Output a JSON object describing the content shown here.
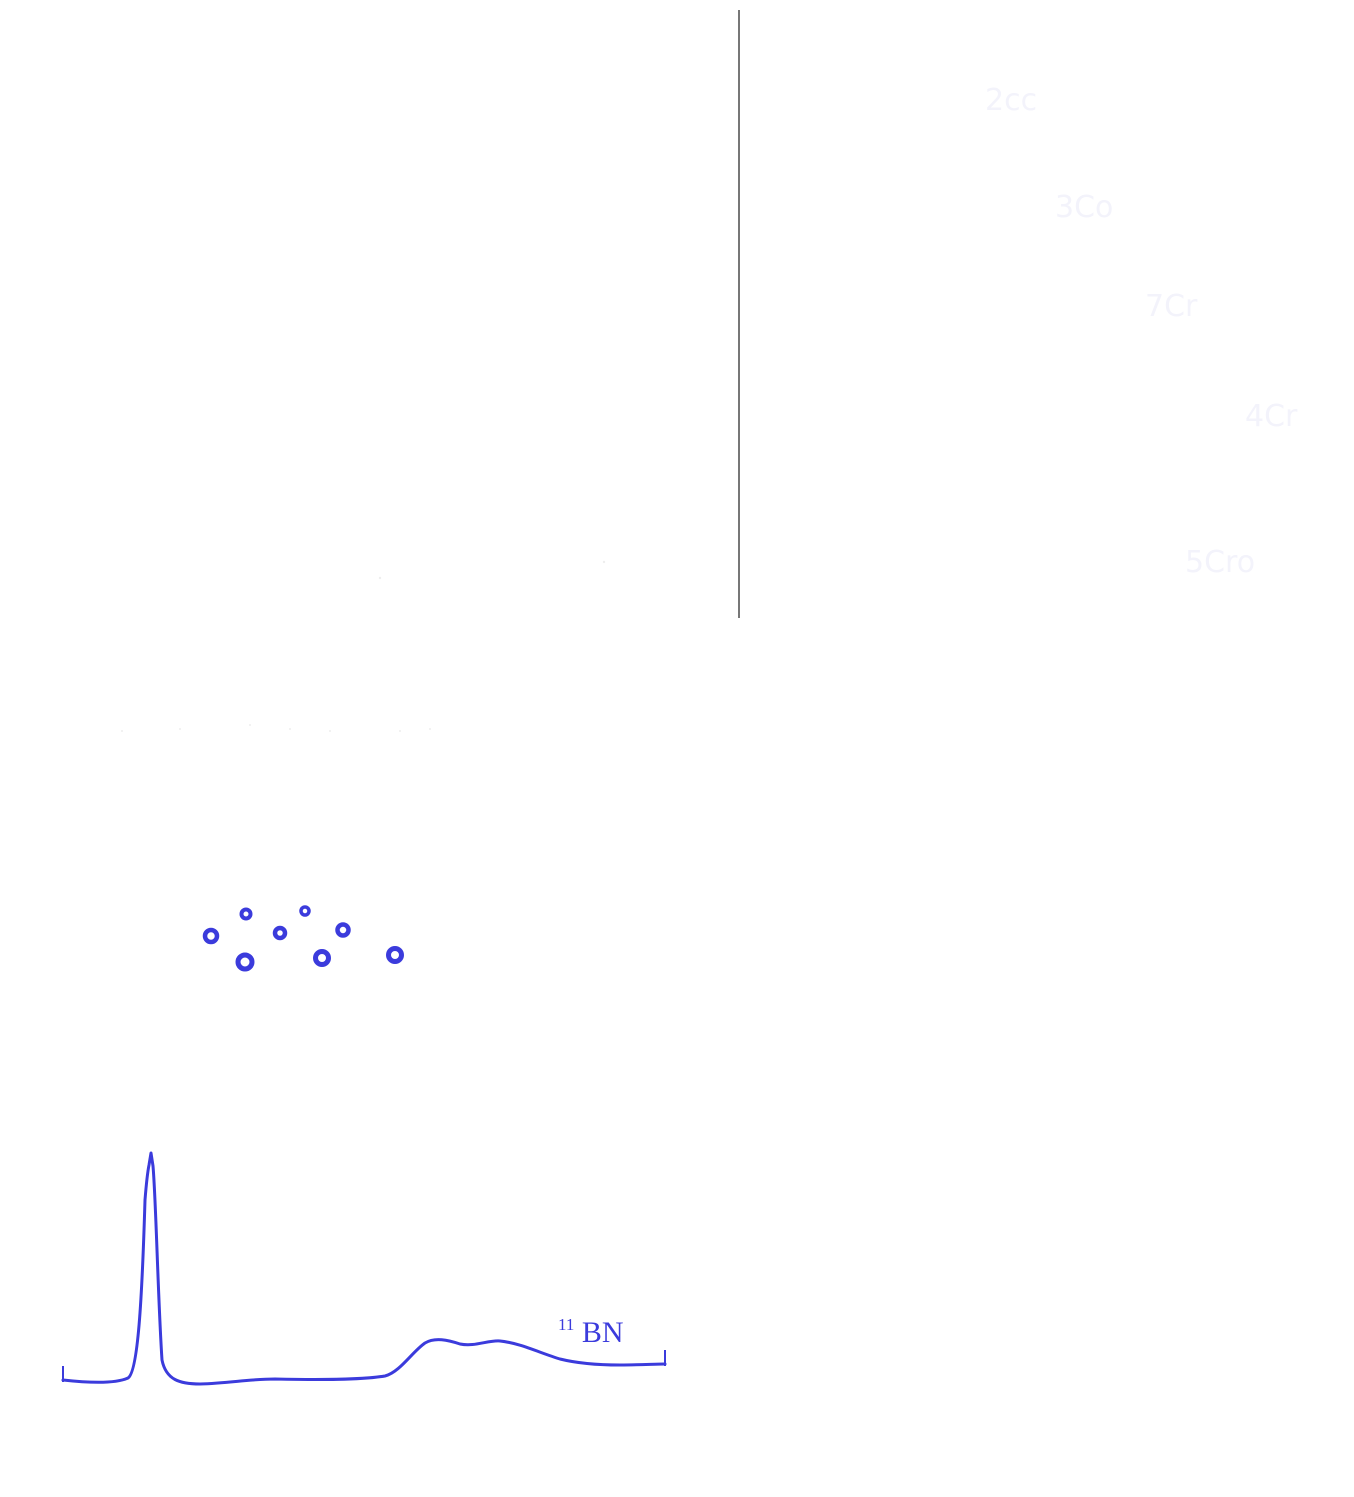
{
  "colors": {
    "background": "#ffffff",
    "ink": "#3b3bdc",
    "faint": "#f3f3fb",
    "divider": "#4a4a4a"
  },
  "right_panel": {
    "labels": [
      "2cc",
      "3Co",
      "7Cr",
      "4Cr",
      "5Cro"
    ]
  },
  "spectrum": {
    "label_sup": "11",
    "label_main": "BN"
  }
}
